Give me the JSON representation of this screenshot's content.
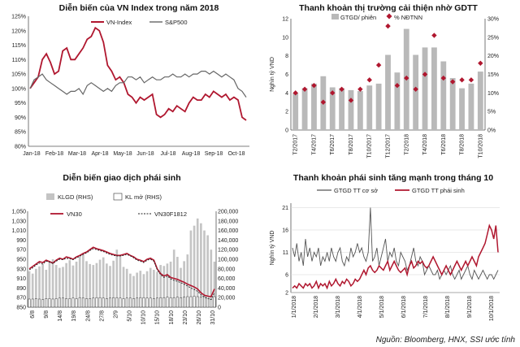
{
  "source": "Nguồn: Bloomberg, HNX, SSI ước tính",
  "chart_data": [
    {
      "type": "line",
      "title": "Diễn biến của VN Index trong năm 2018",
      "ylim": [
        80,
        125
      ],
      "y_ticks": [
        "80%",
        "85%",
        "90%",
        "95%",
        "100%",
        "105%",
        "110%",
        "115%",
        "120%",
        "125%"
      ],
      "x_ticks": [
        "Jan-18",
        "Feb-18",
        "Mar-18",
        "Apr-18",
        "May-18",
        "Jun-18",
        "Jul-18",
        "Aug-18",
        "Sep-18",
        "Oct-18"
      ],
      "legend_position": "top",
      "grid": false,
      "series": [
        {
          "name": "VN-Index",
          "color": "#b0172f",
          "values": [
            100,
            102,
            104,
            110,
            112,
            109,
            105,
            106,
            113,
            114,
            110,
            110,
            112,
            114,
            117,
            118,
            121,
            120,
            116,
            108,
            106,
            103,
            104,
            102,
            98,
            97,
            95,
            97,
            96,
            97,
            98,
            91,
            90,
            91,
            93,
            92,
            94,
            93,
            92,
            95,
            97,
            96,
            96,
            98,
            97,
            99,
            98,
            97,
            98,
            96,
            97,
            96,
            90,
            89
          ]
        },
        {
          "name": "S&P500",
          "color": "#666666",
          "values": [
            100,
            103,
            104,
            105,
            103,
            102,
            101,
            100,
            99,
            98,
            99,
            99,
            100,
            98,
            101,
            102,
            101,
            100,
            99,
            100,
            99,
            101,
            102,
            102,
            104,
            104,
            103,
            104,
            102,
            103,
            104,
            103,
            103,
            104,
            104,
            105,
            104,
            104,
            105,
            104,
            105,
            105,
            106,
            106,
            105,
            106,
            105,
            104,
            105,
            104,
            103,
            100,
            99,
            97
          ]
        }
      ]
    },
    {
      "type": "bar",
      "title": "Thanh khoản thị trường cải thiện nhờ GDTT",
      "ylabel": "Nghìn tỷ VND",
      "ylim": [
        0,
        12
      ],
      "y2lim": [
        0,
        30
      ],
      "y_ticks": [
        "0",
        "2",
        "4",
        "6",
        "8",
        "10",
        "12"
      ],
      "y2_ticks": [
        "0%",
        "5%",
        "10%",
        "15%",
        "20%",
        "25%",
        "30%"
      ],
      "categories": [
        "T2/2017",
        "T3/2017",
        "T4/2017",
        "T5/2017",
        "T6/2017",
        "T7/2017",
        "T8/2017",
        "T9/2017",
        "T10/2017",
        "T11/2017",
        "T12/2017",
        "T1/2018",
        "T2/2018",
        "T3/2018",
        "T4/2018",
        "T5/2018",
        "T6/2018",
        "T7/2018",
        "T8/2018",
        "T9/2018",
        "T10/2018"
      ],
      "x_tick_labels": [
        "T2/2017",
        "",
        "T4/2017",
        "",
        "T6/2017",
        "",
        "T8/2017",
        "",
        "T10/2017",
        "",
        "T12/2017",
        "",
        "T2/2018",
        "",
        "T4/2018",
        "",
        "T6/2018",
        "",
        "T8/2018",
        "",
        "T10/2018"
      ],
      "series": [
        {
          "name": "GTGD/ phiên",
          "axis": "left",
          "color": "#b9b9b9",
          "values": [
            4.0,
            4.5,
            5.0,
            5.8,
            4.6,
            4.5,
            4.3,
            4.2,
            4.8,
            5.0,
            8.1,
            6.2,
            10.9,
            8.1,
            8.9,
            8.9,
            7.4,
            5.6,
            4.5,
            5.0,
            6.3
          ]
        },
        {
          "name": "% NĐTNN",
          "axis": "right",
          "color": "#b0172f",
          "marker": "diamond",
          "values": [
            10,
            11,
            12,
            7.5,
            10,
            11,
            8,
            11,
            13.5,
            17.5,
            28,
            12,
            14,
            11,
            15,
            25.5,
            14,
            13,
            13.5,
            13.5,
            18
          ]
        }
      ]
    },
    {
      "type": "bar",
      "title": "Diễn biến giao dịch phái sinh",
      "ylim": [
        850,
        1050
      ],
      "y2lim": [
        0,
        200000
      ],
      "y_ticks": [
        "850",
        "870",
        "890",
        "910",
        "930",
        "950",
        "970",
        "990",
        "1,010",
        "1,030",
        "1,050"
      ],
      "y2_ticks": [
        "0",
        "20,000",
        "40,000",
        "60,000",
        "80,000",
        "100,000",
        "120,000",
        "140,000",
        "160,000",
        "180,000",
        "200,000"
      ],
      "x_ticks": [
        "6/8",
        "9/8",
        "14/8",
        "19/8",
        "24/8",
        "27/8",
        "2/9",
        "5/10",
        "10/10",
        "15/10",
        "18/10",
        "23/10",
        "26/10",
        "31/10"
      ],
      "series": [
        {
          "name": "KLGD (RHS)",
          "axis": "right",
          "color": "#c4c4c4",
          "values": [
            75000,
            70000,
            80000,
            85000,
            90000,
            78000,
            95000,
            100000,
            88000,
            82000,
            84000,
            92000,
            98000,
            87000,
            95000,
            105000,
            110000,
            96000,
            90000,
            88000,
            92000,
            99000,
            104000,
            91000,
            86000,
            97000,
            120000,
            108000,
            84000,
            80000,
            70000,
            65000,
            72000,
            76000,
            69000,
            75000,
            82000,
            78000,
            74000,
            88000,
            86000,
            91000,
            95000,
            120000,
            105000,
            82000,
            96000,
            110000,
            160000,
            170000,
            185000,
            175000,
            160000,
            150000,
            120000,
            95000
          ]
        },
        {
          "name": "KL mở (RHS)",
          "axis": "right",
          "color": "#ffffff",
          "values": [
            17000,
            17000,
            18000,
            17000,
            16000,
            18000,
            18000,
            17000,
            18000,
            19000,
            19000,
            18000,
            18000,
            19000,
            18000,
            20000,
            19000,
            18000,
            18000,
            19000,
            20000,
            20000,
            19000,
            18000,
            19000,
            20000,
            20000,
            19000,
            18000,
            19000,
            19000,
            18000,
            19000,
            20000,
            20000,
            19000,
            19000,
            18000,
            19000,
            20000,
            20000,
            21000,
            20000,
            20000,
            21000,
            20000,
            21000,
            22000,
            22000,
            23000,
            22000,
            21000,
            22000,
            23000,
            23000,
            22000
          ]
        },
        {
          "name": "VN30",
          "axis": "left",
          "color": "#b0172f",
          "values": [
            930,
            935,
            940,
            945,
            943,
            948,
            945,
            942,
            948,
            952,
            950,
            955,
            953,
            950,
            955,
            958,
            962,
            965,
            970,
            975,
            972,
            970,
            968,
            965,
            962,
            960,
            958,
            958,
            960,
            962,
            958,
            955,
            950,
            948,
            945,
            950,
            952,
            948,
            930,
            920,
            915,
            918,
            912,
            910,
            908,
            905,
            902,
            898,
            895,
            892,
            888,
            880,
            875,
            873,
            872,
            888
          ]
        },
        {
          "name": "VN30F1812",
          "axis": "left",
          "color": "#222222",
          "dash": true,
          "values": [
            928,
            932,
            938,
            942,
            940,
            946,
            944,
            941,
            946,
            950,
            949,
            952,
            951,
            949,
            953,
            956,
            960,
            963,
            968,
            972,
            970,
            968,
            966,
            963,
            960,
            958,
            957,
            957,
            958,
            960,
            957,
            953,
            948,
            946,
            943,
            948,
            950,
            946,
            928,
            918,
            912,
            915,
            909,
            906,
            904,
            901,
            898,
            894,
            890,
            887,
            883,
            876,
            871,
            868,
            866,
            880
          ]
        }
      ]
    },
    {
      "type": "line",
      "title": "Thanh khoản phái sinh tăng mạnh trong tháng 10",
      "ylabel": "Nghìn tỷ VND",
      "ylim": [
        2,
        22
      ],
      "y_ticks": [
        "2",
        "6",
        "11",
        "16",
        "21"
      ],
      "x_ticks": [
        "1/1/2018",
        "2/1/2018",
        "3/1/2018",
        "4/1/2018",
        "5/1/2018",
        "6/1/2018",
        "7/1/2018",
        "8/1/2018",
        "9/1/2018",
        "10/1/2018"
      ],
      "series": [
        {
          "name": "GTGD TT cơ sở",
          "color": "#555555",
          "values": [
            12,
            10,
            13,
            9,
            11,
            8,
            14,
            10,
            12,
            9,
            11,
            10,
            12,
            8,
            10,
            9,
            11,
            9,
            12,
            10,
            9,
            11,
            12,
            9,
            8,
            10,
            9,
            12,
            10,
            11,
            13,
            11,
            12,
            10,
            9,
            11,
            21,
            9,
            10,
            12,
            8,
            10,
            12,
            14,
            9,
            11,
            10,
            12,
            9,
            8,
            11,
            10,
            9,
            7,
            8,
            10,
            12,
            9,
            8,
            10,
            9,
            6,
            7,
            8,
            7,
            6,
            6,
            7,
            5,
            6,
            7,
            6,
            7,
            8,
            6,
            5,
            6,
            7,
            5,
            6,
            7,
            8,
            6,
            5,
            7,
            6,
            5,
            6,
            7,
            6,
            5,
            6,
            6,
            5,
            6,
            7
          ]
        },
        {
          "name": "GTGD TT phái sinh",
          "color": "#b0172f",
          "values": [
            3,
            3.5,
            3,
            4,
            3.5,
            3,
            4,
            3.5,
            4,
            3,
            3.5,
            4.5,
            3,
            4,
            3.5,
            4,
            3,
            4.5,
            3.5,
            4,
            5,
            4,
            3.5,
            4.5,
            4,
            5,
            4.5,
            3.5,
            4,
            5,
            4.5,
            5,
            6,
            7,
            6,
            7.5,
            8,
            7,
            6.5,
            7,
            8,
            7.5,
            7,
            8,
            9,
            7,
            8,
            9,
            8,
            7,
            6.5,
            7,
            7.5,
            6,
            8,
            9,
            7.5,
            8,
            9,
            8.5,
            9,
            8,
            7.5,
            8,
            9,
            10,
            9,
            8,
            7,
            6,
            7,
            8,
            7,
            6,
            7,
            8,
            9,
            8,
            7,
            8,
            9,
            8,
            9,
            10,
            9,
            8,
            10,
            11,
            12,
            13,
            15,
            17,
            16,
            14,
            17,
            11
          ]
        }
      ]
    }
  ]
}
